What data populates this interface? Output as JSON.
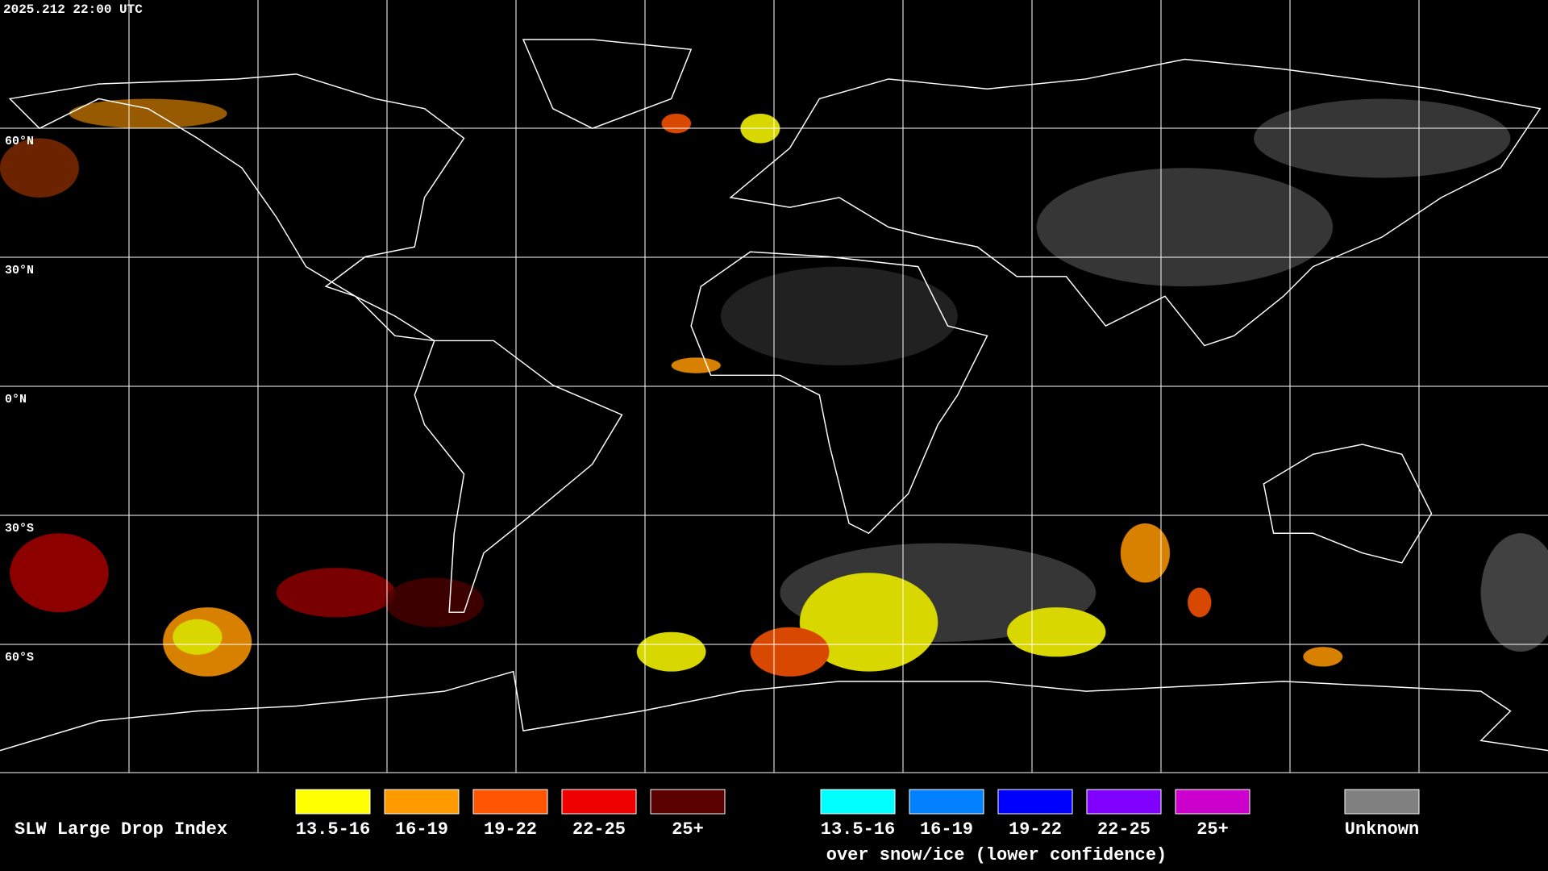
{
  "timestamp": "2025.212 22:00 UTC",
  "latitude_labels": [
    "60°N",
    "30°N",
    "0°N",
    "30°S",
    "60°S"
  ],
  "legend": {
    "title": "SLW Large Drop Index",
    "liquid": [
      {
        "label": "13.5-16",
        "color": "#ffff00"
      },
      {
        "label": "16-19",
        "color": "#ff9900"
      },
      {
        "label": "19-22",
        "color": "#ff5500"
      },
      {
        "label": "22-25",
        "color": "#ee0000"
      },
      {
        "label": "25+",
        "color": "#5a0000"
      }
    ],
    "snow_ice": [
      {
        "label": "13.5-16",
        "color": "#00ffff"
      },
      {
        "label": "16-19",
        "color": "#0080ff"
      },
      {
        "label": "19-22",
        "color": "#0000ff"
      },
      {
        "label": "22-25",
        "color": "#8000ff"
      },
      {
        "label": "25+",
        "color": "#cc00cc"
      }
    ],
    "snow_ice_note": "over snow/ice (lower confidence)",
    "unknown": {
      "label": "Unknown",
      "color": "#808080"
    }
  }
}
